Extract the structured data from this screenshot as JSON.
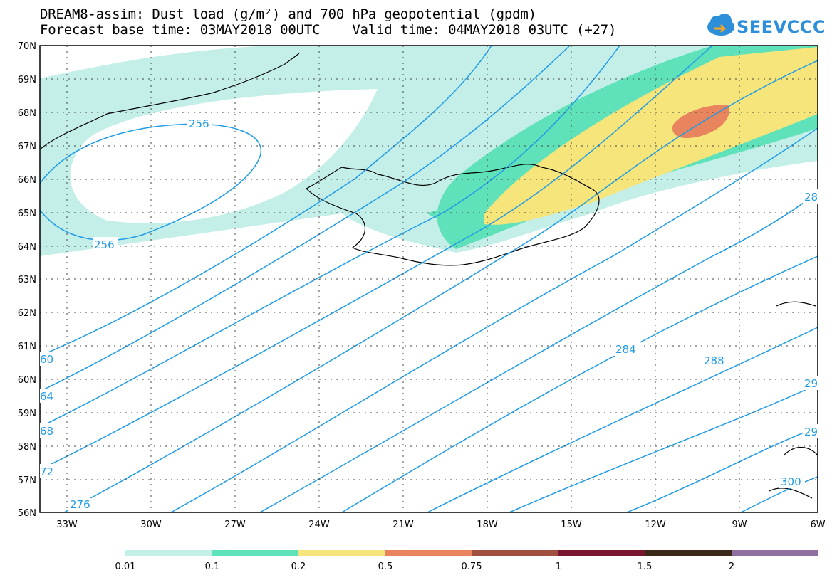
{
  "header": {
    "title_line1": "DREAM8-assim: Dust load (g/m²) and 700 hPa geopotential (gpdm)",
    "title_line2": "Forecast base time: 03MAY2018 00UTC    Valid time: 04MAY2018 03UTC (+27)"
  },
  "logo": {
    "text": "SEEVCCC",
    "icon": "cloud-arrow-icon",
    "color": "#2d8fd9"
  },
  "axes": {
    "lat_labels": [
      "70N",
      "69N",
      "68N",
      "67N",
      "66N",
      "65N",
      "64N",
      "63N",
      "62N",
      "61N",
      "60N",
      "59N",
      "58N",
      "57N",
      "56N"
    ],
    "lon_labels": [
      "33W",
      "30W",
      "27W",
      "24W",
      "21W",
      "18W",
      "15W",
      "12W",
      "9W",
      "6W"
    ]
  },
  "contour_labels": [
    "256",
    "256",
    "60",
    "64",
    "68",
    "72",
    "276",
    "284",
    "288",
    "28",
    "29",
    "29",
    "300"
  ],
  "colorbar": {
    "labels": [
      "0.01",
      "0.1",
      "0.2",
      "0.5",
      "0.75",
      "1",
      "1.5",
      "2"
    ],
    "colors": [
      "#c4efe9",
      "#5fe2ba",
      "#f5e57a",
      "#e8855f",
      "#a05040",
      "#7a1530",
      "#3a2818",
      "#9070a0"
    ]
  },
  "colors": {
    "contour": "#1e9be6",
    "coast": "#000000"
  }
}
